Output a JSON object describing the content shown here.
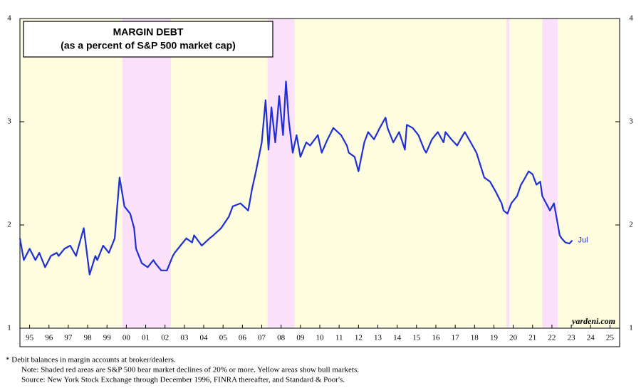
{
  "chart_data": {
    "type": "line",
    "title": "MARGIN DEBT",
    "subtitle": "(as a percent of S&P 500 market cap)",
    "x": [
      1995.0,
      1995.2,
      1995.5,
      1995.8,
      1996.0,
      1996.3,
      1996.6,
      1996.9,
      1997.0,
      1997.3,
      1997.6,
      1997.9,
      1998.0,
      1998.3,
      1998.6,
      1998.9,
      1999.0,
      1999.3,
      1999.6,
      1999.9,
      2000.0,
      2000.15,
      2000.4,
      2000.7,
      2000.9,
      2001.0,
      2001.3,
      2001.6,
      2001.9,
      2002.0,
      2002.3,
      2002.6,
      2002.9,
      2003.0,
      2003.3,
      2003.6,
      2003.9,
      2004.0,
      2004.4,
      2004.8,
      2005.0,
      2005.4,
      2005.8,
      2006.0,
      2006.4,
      2006.8,
      2007.0,
      2007.2,
      2007.5,
      2007.7,
      2007.85,
      2008.0,
      2008.2,
      2008.4,
      2008.6,
      2008.75,
      2008.9,
      2009.1,
      2009.3,
      2009.5,
      2009.8,
      2010.0,
      2010.4,
      2010.6,
      2010.9,
      2011.2,
      2011.6,
      2011.9,
      2012.0,
      2012.3,
      2012.5,
      2012.8,
      2013.0,
      2013.3,
      2013.6,
      2013.9,
      2014.0,
      2014.3,
      2014.6,
      2014.9,
      2015.0,
      2015.3,
      2015.6,
      2015.9,
      2016.0,
      2016.3,
      2016.6,
      2016.9,
      2017.0,
      2017.3,
      2017.6,
      2017.9,
      2018.0,
      2018.3,
      2018.6,
      2018.9,
      2019.0,
      2019.3,
      2019.6,
      2019.9,
      2020.0,
      2020.2,
      2020.4,
      2020.7,
      2020.9,
      2021.0,
      2021.3,
      2021.5,
      2021.7,
      2021.9,
      2022.0,
      2022.2,
      2022.4,
      2022.6,
      2022.8,
      2022.9,
      2023.0,
      2023.2,
      2023.4,
      2023.55
    ],
    "series": [
      {
        "name": "Margin debt",
        "color": "#1f2fd6",
        "values": [
          1.87,
          1.66,
          1.77,
          1.66,
          1.73,
          1.59,
          1.7,
          1.73,
          1.7,
          1.77,
          1.8,
          1.7,
          1.77,
          1.97,
          1.52,
          1.7,
          1.66,
          1.8,
          1.73,
          1.87,
          2.11,
          2.46,
          2.18,
          2.11,
          1.97,
          1.77,
          1.63,
          1.59,
          1.66,
          1.63,
          1.56,
          1.56,
          1.7,
          1.73,
          1.8,
          1.87,
          1.83,
          1.9,
          1.8,
          1.87,
          1.9,
          1.97,
          2.08,
          2.18,
          2.21,
          2.14,
          2.35,
          2.52,
          2.8,
          3.21,
          2.73,
          3.14,
          2.8,
          3.25,
          2.87,
          3.39,
          3.01,
          2.7,
          2.87,
          2.66,
          2.8,
          2.77,
          2.87,
          2.7,
          2.83,
          2.94,
          2.87,
          2.77,
          2.7,
          2.66,
          2.52,
          2.8,
          2.9,
          2.83,
          2.94,
          3.04,
          2.94,
          2.8,
          2.9,
          2.73,
          2.97,
          2.94,
          2.87,
          2.73,
          2.7,
          2.83,
          2.9,
          2.8,
          2.9,
          2.83,
          2.77,
          2.87,
          2.9,
          2.8,
          2.7,
          2.52,
          2.46,
          2.42,
          2.32,
          2.21,
          2.14,
          2.11,
          2.21,
          2.28,
          2.39,
          2.42,
          2.52,
          2.49,
          2.39,
          2.42,
          2.28,
          2.21,
          2.14,
          2.21,
          2.01,
          1.9,
          1.87,
          1.83,
          1.82,
          1.85
        ]
      }
    ],
    "end_label": "Jul",
    "bull_color": "#fefde0",
    "bear_color": "#fbe0fa",
    "bear_markets": [
      [
        2000.3,
        2002.8
      ],
      [
        2007.8,
        2009.2
      ],
      [
        2020.15,
        2020.3
      ],
      [
        2022.0,
        2022.8
      ]
    ],
    "xlim": [
      1995,
      2026
    ],
    "xticks": [
      {
        "value": 1995.5,
        "label": "95"
      },
      {
        "value": 1996.5,
        "label": "96"
      },
      {
        "value": 1997.5,
        "label": "97"
      },
      {
        "value": 1998.5,
        "label": "98"
      },
      {
        "value": 1999.5,
        "label": "99"
      },
      {
        "value": 2000.5,
        "label": "00"
      },
      {
        "value": 2001.5,
        "label": "01"
      },
      {
        "value": 2002.5,
        "label": "02"
      },
      {
        "value": 2003.5,
        "label": "03"
      },
      {
        "value": 2004.5,
        "label": "04"
      },
      {
        "value": 2005.5,
        "label": "05"
      },
      {
        "value": 2006.5,
        "label": "06"
      },
      {
        "value": 2007.5,
        "label": "07"
      },
      {
        "value": 2008.5,
        "label": "08"
      },
      {
        "value": 2009.5,
        "label": "09"
      },
      {
        "value": 2010.5,
        "label": "10"
      },
      {
        "value": 2011.5,
        "label": "11"
      },
      {
        "value": 2012.5,
        "label": "12"
      },
      {
        "value": 2013.5,
        "label": "13"
      },
      {
        "value": 2014.5,
        "label": "14"
      },
      {
        "value": 2015.5,
        "label": "15"
      },
      {
        "value": 2016.5,
        "label": "16"
      },
      {
        "value": 2017.5,
        "label": "17"
      },
      {
        "value": 2018.5,
        "label": "18"
      },
      {
        "value": 2019.5,
        "label": "19"
      },
      {
        "value": 2020.5,
        "label": "20"
      },
      {
        "value": 2021.5,
        "label": "21"
      },
      {
        "value": 2022.5,
        "label": "22"
      },
      {
        "value": 2023.5,
        "label": "23"
      },
      {
        "value": 2024.5,
        "label": "24"
      },
      {
        "value": 2025.5,
        "label": "25"
      }
    ],
    "ylim": [
      1,
      4
    ],
    "yticks": [
      1,
      2,
      3,
      4
    ],
    "y2lim": [
      1,
      4
    ],
    "y2ticks": [
      1,
      2,
      3,
      4
    ],
    "source_watermark": "yardeni.com",
    "notes": [
      "*  Debit balances in margin accounts at broker/dealers.",
      "Note: Shaded red areas are S&P 500 bear market declines of 20% or more. Yellow areas show bull markets.",
      "Source: New York Stock Exchange through December 1996, FINRA thereafter, and Standard & Poor's."
    ]
  }
}
